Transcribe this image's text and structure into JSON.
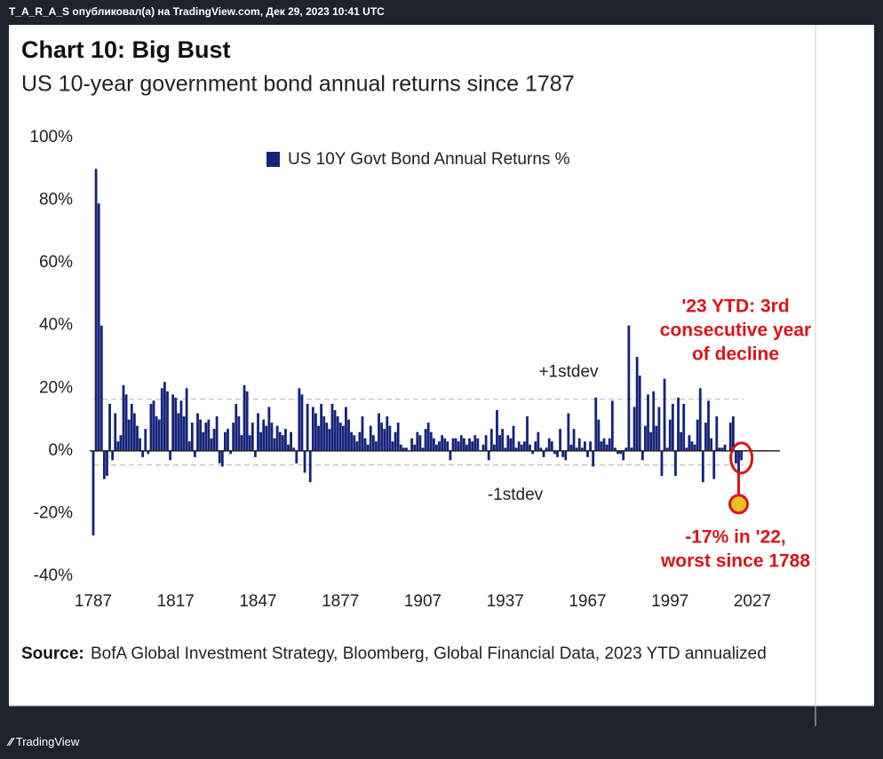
{
  "header": "T_A_R_A_S опубликовал(а) на TradingView.com, Дек 29, 2023 10:41 UTC",
  "footer": "TradingView",
  "chart_data": {
    "type": "bar",
    "title": "Chart 10: Big Bust",
    "subtitle": "US 10-year government bond annual returns since 1787",
    "series": [
      {
        "name": "US 10Y Govt Bond Annual Returns %",
        "color": "#14237a",
        "values": [
          -27,
          90,
          79,
          40,
          -9,
          -8,
          15,
          -3,
          12,
          3,
          5,
          21,
          18,
          10,
          15,
          12,
          8,
          4,
          -2,
          7,
          -1,
          15,
          16,
          11,
          10,
          20,
          22,
          19,
          -3,
          18,
          17,
          12,
          16,
          11,
          20,
          3,
          9,
          -2,
          12,
          10,
          6,
          9,
          10,
          4,
          7,
          11,
          -4,
          -5,
          6,
          7,
          -1,
          9,
          15,
          11,
          5,
          21,
          19,
          5,
          9,
          -2,
          12,
          6,
          10,
          8,
          14,
          9,
          4,
          8,
          6,
          5,
          7,
          2,
          6,
          1,
          -4,
          20,
          18,
          -7,
          15,
          -10,
          14,
          12,
          8,
          15,
          11,
          9,
          7,
          15,
          13,
          11,
          9,
          8,
          14,
          10,
          6,
          5,
          3,
          6,
          11,
          4,
          2,
          8,
          5,
          3,
          12,
          9,
          7,
          11,
          8,
          3,
          6,
          9,
          2,
          1,
          1,
          0,
          4,
          2,
          6,
          5,
          1,
          7,
          9,
          6,
          4,
          2,
          3,
          5,
          4,
          3,
          -3,
          4,
          4,
          3,
          5,
          4,
          2,
          4,
          3,
          5,
          4,
          0,
          2,
          5,
          -3,
          7,
          2,
          13,
          5,
          7,
          1,
          5,
          4,
          8,
          1,
          3,
          2,
          3,
          11,
          2,
          -1,
          3,
          6,
          1,
          -2,
          1,
          4,
          3,
          -1,
          -2,
          7,
          -2,
          -3,
          12,
          2,
          7,
          1,
          4,
          1,
          3,
          -2,
          3,
          -5,
          17,
          10,
          3,
          4,
          2,
          4,
          16,
          1,
          -1,
          -1,
          -3,
          1,
          40,
          1,
          14,
          30,
          24,
          -3,
          8,
          18,
          6,
          19,
          8,
          14,
          -8,
          23,
          1,
          10,
          15,
          -8,
          17,
          6,
          15,
          1,
          5,
          3,
          2,
          10,
          20,
          -10,
          9,
          16,
          4,
          -9,
          11,
          1,
          1,
          2,
          0,
          9,
          11,
          -4,
          -17,
          -3
        ]
      }
    ],
    "x": [
      1787,
      1788,
      1789,
      1790,
      1791,
      1792,
      1793,
      1794,
      1795,
      1796,
      1797,
      1798,
      1799,
      1800,
      1801,
      1802,
      1803,
      1804,
      1805,
      1806,
      1807,
      1808,
      1809,
      1810,
      1811,
      1812,
      1813,
      1814,
      1815,
      1816,
      1817,
      1818,
      1819,
      1820,
      1821,
      1822,
      1823,
      1824,
      1825,
      1826,
      1827,
      1828,
      1829,
      1830,
      1831,
      1832,
      1833,
      1834,
      1835,
      1836,
      1837,
      1838,
      1839,
      1840,
      1841,
      1842,
      1843,
      1844,
      1845,
      1846,
      1847,
      1848,
      1849,
      1850,
      1851,
      1852,
      1853,
      1854,
      1855,
      1856,
      1857,
      1858,
      1859,
      1860,
      1861,
      1862,
      1863,
      1864,
      1865,
      1866,
      1867,
      1868,
      1869,
      1870,
      1871,
      1872,
      1873,
      1874,
      1875,
      1876,
      1877,
      1878,
      1879,
      1880,
      1881,
      1882,
      1883,
      1884,
      1885,
      1886,
      1887,
      1888,
      1889,
      1890,
      1891,
      1892,
      1893,
      1894,
      1895,
      1896,
      1897,
      1898,
      1899,
      1900,
      1901,
      1902,
      1903,
      1904,
      1905,
      1906,
      1907,
      1908,
      1909,
      1910,
      1911,
      1912,
      1913,
      1914,
      1915,
      1916,
      1917,
      1918,
      1919,
      1920,
      1921,
      1922,
      1923,
      1924,
      1925,
      1926,
      1927,
      1928,
      1929,
      1930,
      1931,
      1932,
      1933,
      1934,
      1935,
      1936,
      1937,
      1938,
      1939,
      1940,
      1941,
      1942,
      1943,
      1944,
      1945,
      1946,
      1947,
      1948,
      1949,
      1950,
      1951,
      1952,
      1953,
      1954,
      1955,
      1956,
      1957,
      1958,
      1959,
      1960,
      1961,
      1962,
      1963,
      1964,
      1965,
      1966,
      1967,
      1968,
      1969,
      1970,
      1971,
      1972,
      1973,
      1974,
      1975,
      1976,
      1977,
      1978,
      1979,
      1980,
      1981,
      1982,
      1983,
      1984,
      1985,
      1986,
      1987,
      1988,
      1989,
      1990,
      1991,
      1992,
      1993,
      1994,
      1995,
      1996,
      1997,
      1998,
      1999,
      2000,
      2001,
      2002,
      2003,
      2004,
      2005,
      2006,
      2007,
      2008,
      2009,
      2010,
      2011,
      2012,
      2013,
      2014,
      2015,
      2016,
      2017,
      2018,
      2019,
      2020,
      2021,
      2022,
      2023
    ],
    "xlim": [
      1787,
      2027
    ],
    "xticks": [
      1787,
      1817,
      1847,
      1877,
      1907,
      1937,
      1967,
      1997,
      2027
    ],
    "ylim": [
      -40,
      100
    ],
    "yticks": [
      {
        "value": -40,
        "label": "-40%"
      },
      {
        "value": -20,
        "label": "-20%"
      },
      {
        "value": 0,
        "label": "0%"
      },
      {
        "value": 20,
        "label": "20%"
      },
      {
        "value": 40,
        "label": "40%"
      },
      {
        "value": 60,
        "label": "60%"
      },
      {
        "value": 80,
        "label": "80%"
      },
      {
        "value": 100,
        "label": "100%"
      }
    ],
    "reference_lines": [
      {
        "label": "+1stdev",
        "value": 16.5
      },
      {
        "label": "-1stdev",
        "value": -4.5
      }
    ],
    "annotations": [
      {
        "x": 2023,
        "lines": [
          "'23 YTD: 3rd",
          "consecutive year",
          "of decline"
        ]
      },
      {
        "x": 2022,
        "lines": [
          "-17% in '22,",
          "worst since 1788"
        ]
      }
    ],
    "annotation_color": "#d8141c",
    "source_label": "Source:",
    "source": "BofA Global Investment Strategy, Bloomberg, Global Financial Data, 2023 YTD annualized"
  }
}
